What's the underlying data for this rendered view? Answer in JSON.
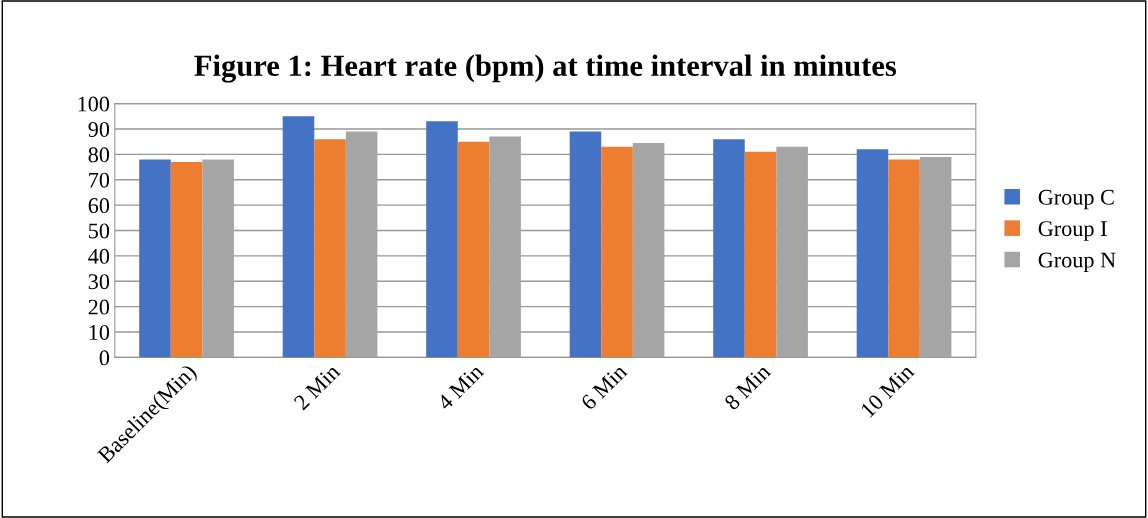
{
  "chart_data": {
    "type": "bar",
    "title": "Figure 1: Heart rate (bpm) at time interval in minutes",
    "categories": [
      "Baseline(Min)",
      "2 Min",
      "4 Min",
      "6 Min",
      "8 Min",
      "10 Min"
    ],
    "series": [
      {
        "name": "Group C",
        "color": "#4472c4",
        "values": [
          78,
          95,
          93,
          89,
          86,
          82
        ]
      },
      {
        "name": "Group I",
        "color": "#ed7d31",
        "values": [
          77,
          86,
          85,
          83,
          81,
          78
        ]
      },
      {
        "name": "Group N",
        "color": "#a5a5a5",
        "values": [
          78,
          89,
          87,
          84.5,
          83,
          79
        ]
      }
    ],
    "ylim": [
      0,
      100
    ],
    "yticks": [
      0,
      10,
      20,
      30,
      40,
      50,
      60,
      70,
      80,
      90,
      100
    ],
    "grid": "y",
    "legend": "right"
  }
}
